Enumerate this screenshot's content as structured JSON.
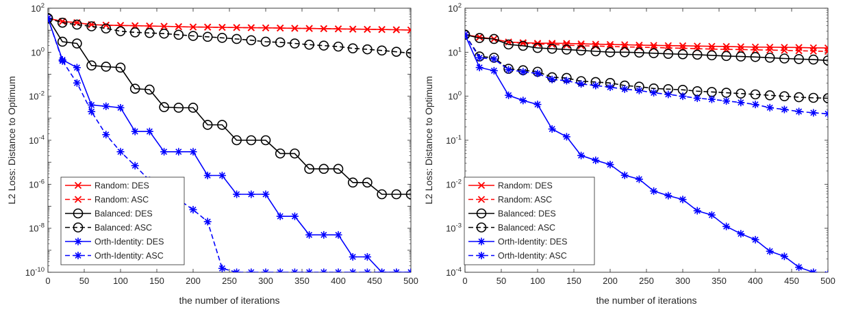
{
  "chart_data": [
    {
      "type": "line",
      "xlabel": "the number of iterations",
      "ylabel": "L2 Loss: Distance to Optimum",
      "xlim": [
        0,
        500
      ],
      "ylim": [
        1e-10,
        100
      ],
      "y_scale": "log",
      "x_ticks": [
        "0",
        "50",
        "100",
        "150",
        "200",
        "250",
        "300",
        "350",
        "400",
        "450",
        "500"
      ],
      "y_ticks": [
        {
          "base": "10",
          "exp": "-10"
        },
        {
          "base": "10",
          "exp": "-8"
        },
        {
          "base": "10",
          "exp": "-6"
        },
        {
          "base": "10",
          "exp": "-4"
        },
        {
          "base": "10",
          "exp": "-2"
        },
        {
          "base": "10",
          "exp": "0"
        },
        {
          "base": "10",
          "exp": "2"
        }
      ],
      "legend_position": "bottom-left",
      "x": [
        0,
        20,
        40,
        60,
        80,
        100,
        120,
        140,
        160,
        180,
        200,
        220,
        240,
        260,
        280,
        300,
        320,
        340,
        360,
        380,
        400,
        420,
        440,
        460,
        480,
        500
      ],
      "series": [
        {
          "name": "Random: DES",
          "color": "#ff0000",
          "style": "solid",
          "marker": "x",
          "values": [
            35,
            25,
            22,
            18,
            17,
            16.5,
            16,
            15.5,
            15,
            14.5,
            14,
            13.8,
            13.5,
            13.2,
            13,
            12.8,
            12.5,
            12.2,
            12,
            11.8,
            11.5,
            11.2,
            11,
            10.8,
            10.5,
            10.2
          ]
        },
        {
          "name": "Random: ASC",
          "color": "#ff0000",
          "style": "dashed",
          "marker": "x",
          "values": [
            35,
            25,
            22,
            18,
            17,
            16.5,
            16,
            15.5,
            15,
            14.5,
            14,
            13.8,
            13.5,
            13.2,
            13,
            12.8,
            12.5,
            12.2,
            12,
            11.8,
            11.5,
            11.2,
            11,
            10.8,
            10.5,
            10.2
          ]
        },
        {
          "name": "Balanced: DES",
          "color": "#000000",
          "style": "solid",
          "marker": "o",
          "values": [
            35,
            3,
            2.5,
            0.25,
            0.22,
            0.2,
            0.022,
            0.02,
            0.0032,
            0.003,
            0.003,
            0.0005,
            0.0005,
            0.0001,
            0.0001,
            0.0001,
            2.5e-05,
            2.5e-05,
            5e-06,
            5e-06,
            5e-06,
            1.2e-06,
            1.2e-06,
            3.5e-07,
            3.5e-07,
            3.5e-07
          ]
        },
        {
          "name": "Balanced: ASC",
          "color": "#000000",
          "style": "dashed",
          "marker": "o",
          "values": [
            35,
            22,
            18,
            15,
            12,
            9,
            8,
            7.5,
            7,
            6.2,
            5.5,
            5,
            4.5,
            4,
            3.5,
            3,
            2.8,
            2.5,
            2.2,
            2,
            1.8,
            1.5,
            1.35,
            1.2,
            1.05,
            0.9
          ]
        },
        {
          "name": "Orth-Identity: DES",
          "color": "#0000ff",
          "style": "solid",
          "marker": "*",
          "values": [
            35,
            0.45,
            0.2,
            0.004,
            0.0035,
            0.003,
            0.00025,
            0.00025,
            3e-05,
            3e-05,
            3e-05,
            2.5e-06,
            2.5e-06,
            3.5e-07,
            3.5e-07,
            3.5e-07,
            3.5e-08,
            3.5e-08,
            5e-09,
            5e-09,
            5e-09,
            5e-10,
            5e-10,
            1e-10,
            1e-10,
            1e-10
          ]
        },
        {
          "name": "Orth-Identity: ASC",
          "color": "#0000ff",
          "style": "dashed",
          "marker": "*",
          "values": [
            35,
            0.4,
            0.04,
            0.002,
            0.00018,
            3e-05,
            7e-06,
            1.5e-06,
            5e-07,
            2e-07,
            7e-08,
            2e-08,
            1.5e-10,
            1e-10,
            1e-10,
            1e-10,
            1e-10,
            1e-10,
            1e-10,
            1e-10,
            1e-10,
            1e-10,
            1e-10,
            1e-10,
            1e-10,
            1e-10
          ]
        }
      ]
    },
    {
      "type": "line",
      "xlabel": "the number of iterations",
      "ylabel": "L2 Loss: Distance to Optimum",
      "xlim": [
        0,
        500
      ],
      "ylim": [
        0.0001,
        100
      ],
      "y_scale": "log",
      "x_ticks": [
        "0",
        "50",
        "100",
        "150",
        "200",
        "250",
        "300",
        "350",
        "400",
        "450",
        "500"
      ],
      "y_ticks": [
        {
          "base": "10",
          "exp": "-4"
        },
        {
          "base": "10",
          "exp": "-3"
        },
        {
          "base": "10",
          "exp": "-2"
        },
        {
          "base": "10",
          "exp": "-1"
        },
        {
          "base": "10",
          "exp": "0"
        },
        {
          "base": "10",
          "exp": "1"
        },
        {
          "base": "10",
          "exp": "2"
        }
      ],
      "legend_position": "bottom-left",
      "x": [
        0,
        20,
        40,
        60,
        80,
        100,
        120,
        140,
        160,
        180,
        200,
        220,
        240,
        260,
        280,
        300,
        320,
        340,
        360,
        380,
        400,
        420,
        440,
        460,
        480,
        500
      ],
      "series": [
        {
          "name": "Random: DES",
          "color": "#ff0000",
          "style": "solid",
          "marker": "x",
          "values": [
            25,
            22,
            20,
            17,
            16.5,
            16,
            16,
            15.8,
            15.5,
            15.2,
            15,
            14.8,
            14.5,
            14.3,
            14.1,
            14,
            13.8,
            13.6,
            13.5,
            13.3,
            13.1,
            13,
            12.9,
            12.8,
            12.6,
            12.5
          ]
        },
        {
          "name": "Random: ASC",
          "color": "#ff0000",
          "style": "dashed",
          "marker": "x",
          "values": [
            25,
            22,
            20,
            17,
            16,
            15.5,
            15,
            14.5,
            14,
            13.8,
            13.5,
            13.2,
            13,
            12.8,
            12.5,
            12.3,
            12,
            11.8,
            11.6,
            11.5,
            11.3,
            11.2,
            11,
            10.8,
            10.6,
            10.5
          ]
        },
        {
          "name": "Balanced: DES",
          "color": "#000000",
          "style": "solid",
          "marker": "o",
          "values": [
            25,
            21,
            20,
            15,
            14,
            12.5,
            12,
            11.5,
            11,
            10.5,
            10,
            10,
            9.8,
            9.5,
            9.2,
            9,
            8.8,
            8.5,
            8.2,
            8,
            7.8,
            7.5,
            7.2,
            7,
            6.8,
            6.5
          ]
        },
        {
          "name": "Balanced: ASC",
          "color": "#000000",
          "style": "dashed",
          "marker": "o",
          "values": [
            25,
            8,
            7.5,
            4.2,
            3.9,
            3.6,
            2.7,
            2.6,
            2.2,
            2.1,
            2,
            1.75,
            1.65,
            1.5,
            1.45,
            1.4,
            1.3,
            1.25,
            1.2,
            1.15,
            1.1,
            1.05,
            1,
            0.95,
            0.92,
            0.9
          ]
        },
        {
          "name": "Orth-Identity: DES",
          "color": "#0000ff",
          "style": "solid",
          "marker": "*",
          "values": [
            25,
            4.5,
            3.8,
            1.05,
            0.8,
            0.65,
            0.18,
            0.12,
            0.045,
            0.035,
            0.028,
            0.016,
            0.013,
            0.007,
            0.0055,
            0.0045,
            0.0025,
            0.002,
            0.0011,
            0.00075,
            0.00055,
            0.0003,
            0.00023,
            0.00013,
            0.0001,
            9e-05
          ]
        },
        {
          "name": "Orth-Identity: ASC",
          "color": "#0000ff",
          "style": "dashed",
          "marker": "*",
          "values": [
            25,
            7.5,
            7,
            4,
            3.6,
            3.3,
            2.4,
            2.25,
            1.9,
            1.75,
            1.6,
            1.45,
            1.35,
            1.2,
            1.1,
            1,
            0.9,
            0.85,
            0.78,
            0.72,
            0.65,
            0.55,
            0.5,
            0.45,
            0.42,
            0.4
          ]
        }
      ]
    }
  ]
}
